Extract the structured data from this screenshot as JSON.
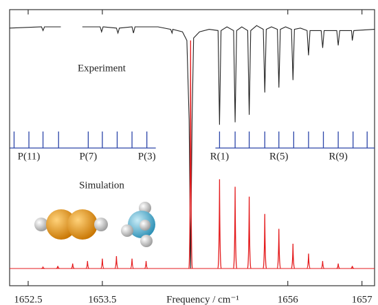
{
  "chart_data": {
    "type": "spectrum",
    "x_label": "Frequency / cm⁻¹",
    "xlim": [
      1652.25,
      1657.17
    ],
    "xticks": [
      1652.5,
      1653.5,
      1656.0,
      1657.0
    ],
    "ylim": [
      0,
      1
    ],
    "series": [
      {
        "name": "Experiment",
        "color": "#222222",
        "style": "line",
        "x": [
          1652.25,
          1652.68,
          1652.7,
          1652.72,
          1652.94,
          null,
          1653.23,
          1653.47,
          1653.49,
          1653.51,
          1653.69,
          1653.71,
          1653.73,
          1653.9,
          1653.92,
          1653.94,
          1654.25,
          1654.42,
          1654.44,
          1654.45,
          1654.58,
          1654.64,
          1654.67,
          1654.69,
          1654.71,
          1654.73,
          1654.81,
          1654.94,
          1655.06,
          1655.08,
          1655.1,
          1655.18,
          1655.27,
          1655.29,
          1655.31,
          1655.38,
          1655.46,
          1655.48,
          1655.5,
          1655.58,
          1655.67,
          1655.69,
          1655.71,
          1655.78,
          1655.86,
          1655.88,
          1655.9,
          1655.97,
          1656.05,
          1656.07,
          1656.09,
          1656.17,
          1656.26,
          1656.28,
          1656.3,
          1656.45,
          1656.47,
          1656.49,
          1656.66,
          1656.68,
          1656.7,
          1656.86,
          1656.87,
          1656.89,
          1657.17
        ],
        "values": [
          0.97,
          0.975,
          0.96,
          0.975,
          0.975,
          null,
          0.975,
          0.975,
          0.955,
          0.975,
          0.97,
          0.95,
          0.97,
          0.975,
          0.95,
          0.975,
          0.975,
          0.965,
          0.95,
          0.965,
          0.955,
          0.92,
          0.6,
          0.0,
          0.6,
          0.93,
          0.955,
          0.965,
          0.96,
          0.58,
          0.96,
          0.975,
          0.96,
          0.59,
          0.96,
          0.975,
          0.96,
          0.62,
          0.96,
          0.98,
          0.965,
          0.71,
          0.965,
          0.975,
          0.965,
          0.73,
          0.965,
          0.975,
          0.965,
          0.76,
          0.965,
          0.97,
          0.96,
          0.86,
          0.96,
          0.96,
          0.89,
          0.96,
          0.96,
          0.9,
          0.96,
          0.96,
          0.92,
          0.96,
          0.965
        ]
      },
      {
        "name": "Simulation",
        "color": "#e41a1c",
        "style": "sticks",
        "x": [
          1652.7,
          1652.9,
          1653.1,
          1653.3,
          1653.5,
          1653.69,
          1653.9,
          1654.09,
          1654.69,
          1655.08,
          1655.29,
          1655.48,
          1655.69,
          1655.88,
          1656.07,
          1656.28,
          1656.47,
          1656.68,
          1656.87
        ],
        "values": [
          0.005,
          0.01,
          0.02,
          0.03,
          0.04,
          0.05,
          0.04,
          0.03,
          0.92,
          0.36,
          0.33,
          0.29,
          0.22,
          0.16,
          0.1,
          0.06,
          0.03,
          0.02,
          0.01
        ]
      }
    ],
    "assignments": [
      {
        "color": "#2a44a8",
        "x": [
          1652.31,
          1652.51,
          1652.7,
          1652.91,
          1653.31,
          1653.5,
          1653.7,
          1653.9,
          1654.1
        ],
        "labels": [
          null,
          "P(11)",
          null,
          null,
          "P(7)",
          null,
          null,
          null,
          "P(3)"
        ]
      },
      {
        "color": "#2a44a8",
        "x": [
          1655.08,
          1655.29,
          1655.48,
          1655.69,
          1655.88,
          1656.08,
          1656.28,
          1656.48,
          1656.68,
          1656.88,
          1657.07
        ],
        "labels": [
          "R(1)",
          null,
          null,
          null,
          "R(5)",
          null,
          null,
          null,
          "R(9)",
          null,
          null
        ]
      }
    ]
  }
}
